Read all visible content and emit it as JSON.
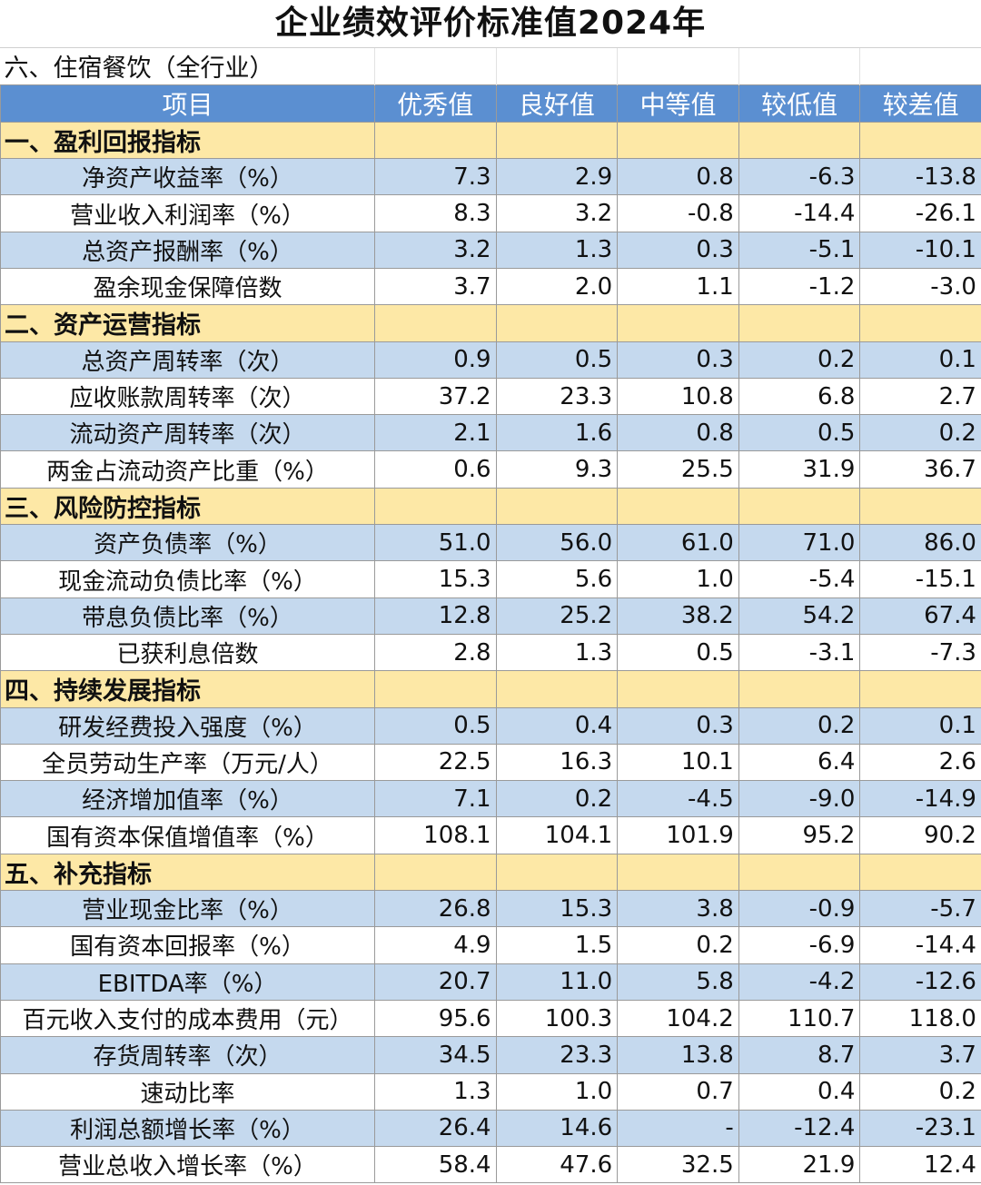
{
  "title": "企业绩效评价标准值2024年",
  "subtitle": "六、住宿餐饮（全行业）",
  "columns": [
    "项目",
    "优秀值",
    "良好值",
    "中等值",
    "较低值",
    "较差值"
  ],
  "sections": [
    {
      "name": "一、盈利回报指标",
      "rows": [
        {
          "name": "净资产收益率（%）",
          "values": [
            "7.3",
            "2.9",
            "0.8",
            "-6.3",
            "-13.8"
          ]
        },
        {
          "name": "营业收入利润率（%）",
          "values": [
            "8.3",
            "3.2",
            "-0.8",
            "-14.4",
            "-26.1"
          ]
        },
        {
          "name": "总资产报酬率（%）",
          "values": [
            "3.2",
            "1.3",
            "0.3",
            "-5.1",
            "-10.1"
          ]
        },
        {
          "name": "盈余现金保障倍数",
          "values": [
            "3.7",
            "2.0",
            "1.1",
            "-1.2",
            "-3.0"
          ]
        }
      ]
    },
    {
      "name": "二、资产运营指标",
      "rows": [
        {
          "name": "总资产周转率（次）",
          "values": [
            "0.9",
            "0.5",
            "0.3",
            "0.2",
            "0.1"
          ]
        },
        {
          "name": "应收账款周转率（次）",
          "values": [
            "37.2",
            "23.3",
            "10.8",
            "6.8",
            "2.7"
          ]
        },
        {
          "name": "流动资产周转率（次）",
          "values": [
            "2.1",
            "1.6",
            "0.8",
            "0.5",
            "0.2"
          ]
        },
        {
          "name": "两金占流动资产比重（%）",
          "values": [
            "0.6",
            "9.3",
            "25.5",
            "31.9",
            "36.7"
          ]
        }
      ]
    },
    {
      "name": "三、风险防控指标",
      "rows": [
        {
          "name": "资产负债率（%）",
          "values": [
            "51.0",
            "56.0",
            "61.0",
            "71.0",
            "86.0"
          ]
        },
        {
          "name": "现金流动负债比率（%）",
          "values": [
            "15.3",
            "5.6",
            "1.0",
            "-5.4",
            "-15.1"
          ]
        },
        {
          "name": "带息负债比率（%）",
          "values": [
            "12.8",
            "25.2",
            "38.2",
            "54.2",
            "67.4"
          ]
        },
        {
          "name": "已获利息倍数",
          "values": [
            "2.8",
            "1.3",
            "0.5",
            "-3.1",
            "-7.3"
          ]
        }
      ]
    },
    {
      "name": "四、持续发展指标",
      "rows": [
        {
          "name": "研发经费投入强度（%）",
          "values": [
            "0.5",
            "0.4",
            "0.3",
            "0.2",
            "0.1"
          ]
        },
        {
          "name": "全员劳动生产率（万元/人）",
          "values": [
            "22.5",
            "16.3",
            "10.1",
            "6.4",
            "2.6"
          ]
        },
        {
          "name": "经济增加值率（%）",
          "values": [
            "7.1",
            "0.2",
            "-4.5",
            "-9.0",
            "-14.9"
          ]
        },
        {
          "name": "国有资本保值增值率（%）",
          "values": [
            "108.1",
            "104.1",
            "101.9",
            "95.2",
            "90.2"
          ]
        }
      ]
    },
    {
      "name": "五、补充指标",
      "rows": [
        {
          "name": "营业现金比率（%）",
          "values": [
            "26.8",
            "15.3",
            "3.8",
            "-0.9",
            "-5.7"
          ]
        },
        {
          "name": "国有资本回报率（%）",
          "values": [
            "4.9",
            "1.5",
            "0.2",
            "-6.9",
            "-14.4"
          ]
        },
        {
          "name": "EBITDA率（%）",
          "values": [
            "20.7",
            "11.0",
            "5.8",
            "-4.2",
            "-12.6"
          ]
        },
        {
          "name": "百元收入支付的成本费用（元）",
          "values": [
            "95.6",
            "100.3",
            "104.2",
            "110.7",
            "118.0"
          ]
        },
        {
          "name": "存货周转率（次）",
          "values": [
            "34.5",
            "23.3",
            "13.8",
            "8.7",
            "3.7"
          ]
        },
        {
          "name": "速动比率",
          "values": [
            "1.3",
            "1.0",
            "0.7",
            "0.4",
            "0.2"
          ]
        },
        {
          "name": "利润总额增长率（%）",
          "values": [
            "26.4",
            "14.6",
            "-",
            "-12.4",
            "-23.1"
          ]
        },
        {
          "name": "营业总收入增长率（%）",
          "values": [
            "58.4",
            "47.6",
            "32.5",
            "21.9",
            "12.4"
          ]
        }
      ]
    }
  ],
  "colors": {
    "header_bg": "#5b8fd1",
    "section_bg": "#fde8a6",
    "row_blue": "#c5d9ee",
    "row_white": "#ffffff"
  }
}
